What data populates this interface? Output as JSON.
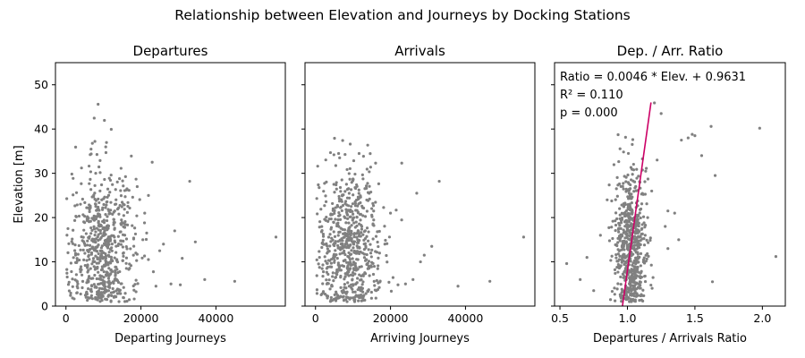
{
  "figure": {
    "suptitle": "Relationship between Elevation and Journeys by Docking Stations"
  },
  "chart_data": [
    {
      "type": "scatter",
      "title": "Departures",
      "xlabel": "Departing Journeys",
      "ylabel": "Elevation [m]",
      "xlim": [
        -2800,
        58500
      ],
      "ylim": [
        0,
        55
      ],
      "xticks": [
        0,
        20000,
        40000
      ],
      "xtick_labels": [
        "0",
        "20000",
        "40000"
      ],
      "yticks": [
        0,
        10,
        20,
        30,
        40,
        50
      ],
      "ytick_labels": [
        "0",
        "10",
        "20",
        "30",
        "40",
        "50"
      ],
      "marker_color": "#808080",
      "cluster": {
        "x_mean": 9500,
        "x_sd": 4500,
        "y_mean": 13,
        "y_sd": 9,
        "count": 640
      },
      "x": [
        56000,
        45000,
        37000,
        33000,
        31000,
        23000,
        22000,
        21000,
        20500,
        26000,
        28000,
        24000,
        30500,
        19000,
        18000,
        29000,
        34500,
        25000
      ],
      "y": [
        15.6,
        5.6,
        6.0,
        28.2,
        10.8,
        32.5,
        25.0,
        21.0,
        15.0,
        14.0,
        5.0,
        4.5,
        4.8,
        27.0,
        11.5,
        17.0,
        14.5,
        12.5
      ]
    },
    {
      "type": "scatter",
      "title": "Arrivals",
      "xlabel": "Arriving Journeys",
      "ylabel": "",
      "xlim": [
        -2800,
        58500
      ],
      "ylim": [
        0,
        55
      ],
      "xticks": [
        0,
        20000,
        40000
      ],
      "xtick_labels": [
        "0",
        "20000",
        "40000"
      ],
      "yticks": [
        0,
        10,
        20,
        30,
        40,
        50
      ],
      "marker_color": "#808080",
      "cluster": {
        "x_mean": 9000,
        "x_sd": 4300,
        "y_mean": 13,
        "y_sd": 9,
        "count": 640
      },
      "x": [
        55500,
        46500,
        38000,
        33000,
        29000,
        27000,
        26000,
        23000,
        22000,
        20000,
        18500,
        28000,
        31000,
        24000
      ],
      "y": [
        15.6,
        5.6,
        4.5,
        28.2,
        11.5,
        25.5,
        6.0,
        32.3,
        4.8,
        21.0,
        14.0,
        10.0,
        13.5,
        5.0
      ]
    },
    {
      "type": "scatter",
      "title": "Dep. / Arr. Ratio",
      "xlabel": "Departures / Arrivals Ratio",
      "ylabel": "",
      "xlim": [
        0.46,
        2.17
      ],
      "ylim": [
        0,
        55
      ],
      "xticks": [
        0.5,
        1.0,
        1.5,
        2.0
      ],
      "xtick_labels": [
        "0.5",
        "1.0",
        "1.5",
        "2.0"
      ],
      "yticks": [
        0,
        10,
        20,
        30,
        40,
        50
      ],
      "marker_color": "#808080",
      "cluster": {
        "x_mean": 1.02,
        "x_sd": 0.06,
        "y_mean": 13,
        "y_sd": 9,
        "count": 640
      },
      "x": [
        1.98,
        2.1,
        1.65,
        1.63,
        1.62,
        1.5,
        1.48,
        1.45,
        1.4,
        1.35,
        1.3,
        1.25,
        1.28,
        0.55,
        0.7,
        0.65,
        0.75,
        0.8,
        1.2,
        1.22,
        1.18,
        1.3,
        1.55,
        0.85,
        1.15,
        1.38
      ],
      "y": [
        40.2,
        11.2,
        29.5,
        5.5,
        40.6,
        38.5,
        38.8,
        38.0,
        37.5,
        21.0,
        21.5,
        43.5,
        18.0,
        9.6,
        11.0,
        6.0,
        3.5,
        16.0,
        45.9,
        33.0,
        26.0,
        13.0,
        34.0,
        24.0,
        20.0,
        15.0
      ],
      "regression": {
        "slope": 0.0046,
        "intercept": 0.9631,
        "x": [
          0.9631,
          1.1747
        ],
        "y": [
          0,
          46
        ],
        "color": "#cc0066"
      },
      "annotation_lines": [
        "Ratio = 0.0046 * Elev. + 0.9631",
        "R² = 0.110",
        "p = 0.000"
      ]
    }
  ]
}
